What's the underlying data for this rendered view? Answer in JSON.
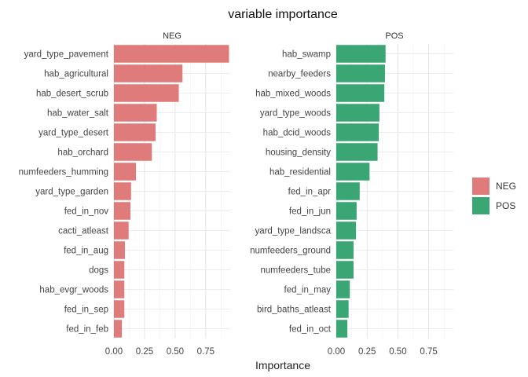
{
  "chart_data": {
    "type": "bar",
    "orientation": "horizontal",
    "title": "variable importance",
    "xlabel": "Importance",
    "ylabel": "",
    "xlim": [
      0,
      0.95
    ],
    "xticks": [
      0.0,
      0.25,
      0.5,
      0.75
    ],
    "xtick_labels": [
      "0.00",
      "0.25",
      "0.50",
      "0.75"
    ],
    "grid": true,
    "legend_position": "right",
    "legend_entries": [
      {
        "label": "NEG",
        "color": "#E07B7B"
      },
      {
        "label": "POS",
        "color": "#3AA673"
      }
    ],
    "panels": [
      {
        "name": "NEG",
        "color": "#E07B7B",
        "categories": [
          "yard_type_pavement",
          "hab_agricultural",
          "hab_desert_scrub",
          "hab_water_salt",
          "yard_type_desert",
          "hab_orchard",
          "numfeeders_humming",
          "yard_type_garden",
          "fed_in_nov",
          "cacti_atleast",
          "fed_in_aug",
          "dogs",
          "hab_evgr_woods",
          "fed_in_sep",
          "fed_in_feb"
        ],
        "values": [
          0.94,
          0.56,
          0.53,
          0.35,
          0.34,
          0.31,
          0.18,
          0.14,
          0.135,
          0.12,
          0.09,
          0.085,
          0.085,
          0.085,
          0.065
        ]
      },
      {
        "name": "POS",
        "color": "#3AA673",
        "categories": [
          "hab_swamp",
          "nearby_feeders",
          "hab_mixed_woods",
          "yard_type_woods",
          "hab_dcid_woods",
          "housing_density",
          "hab_residential",
          "fed_in_apr",
          "fed_in_jun",
          "yard_type_landsca",
          "numfeeders_ground",
          "numfeeders_tube",
          "fed_in_may",
          "bird_baths_atleast",
          "fed_in_oct"
        ],
        "values": [
          0.4,
          0.395,
          0.39,
          0.35,
          0.345,
          0.335,
          0.27,
          0.19,
          0.165,
          0.16,
          0.14,
          0.14,
          0.11,
          0.1,
          0.09
        ]
      }
    ]
  }
}
